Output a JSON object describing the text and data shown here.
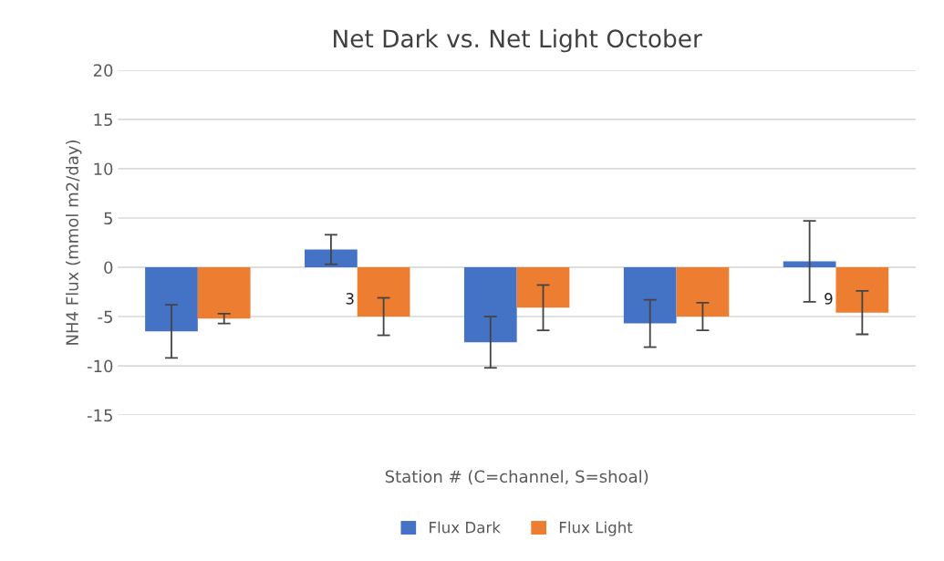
{
  "chart_data": {
    "type": "bar",
    "title": "Net Dark vs. Net Light October",
    "xlabel": "Station # (C=channel, S=shoal)",
    "ylabel": "NH4 Flux (mmol m2/day)",
    "categories": [
      null,
      "3",
      null,
      null,
      "9"
    ],
    "series": [
      {
        "name": "Flux Dark",
        "color": "#4472c4",
        "values": [
          -6.5,
          1.8,
          -7.6,
          -5.7,
          0.6
        ],
        "errors": [
          2.7,
          1.5,
          2.6,
          2.4,
          4.1
        ]
      },
      {
        "name": "Flux Light",
        "color": "#ed7d31",
        "values": [
          -5.2,
          -5.0,
          -4.1,
          -5.0,
          -4.6
        ],
        "errors": [
          0.5,
          1.9,
          2.3,
          1.4,
          2.2
        ]
      }
    ],
    "ylim": [
      -15,
      20
    ],
    "yticks": [
      -15,
      -10,
      -5,
      0,
      5,
      10,
      15,
      20
    ],
    "grid": "y",
    "legend": "bottom"
  }
}
